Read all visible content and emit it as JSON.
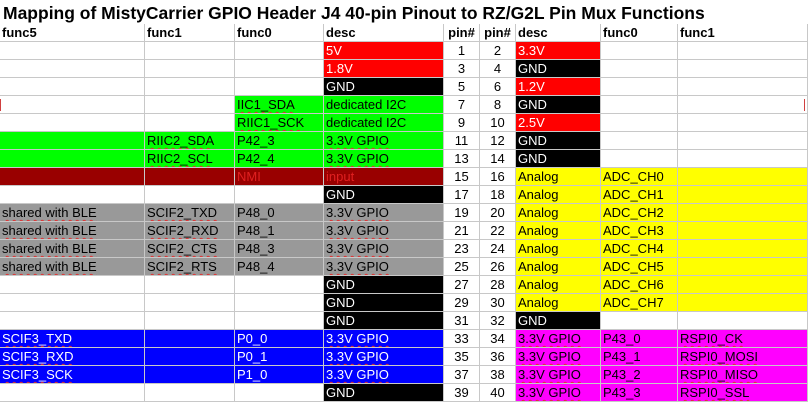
{
  "title": "Mapping of MistyCarrier GPIO Header J4 40-pin Pinout to RZ/G2L Pin Mux Functions",
  "columns": [
    "func5",
    "func1",
    "func0",
    "desc",
    "pin#",
    "pin#",
    "desc",
    "func0",
    "func1"
  ],
  "colors": {
    "red": "#ff0000",
    "black": "#000000",
    "green": "#00ff00",
    "yellow": "#ffff00",
    "maroon": "#990000",
    "gray": "#999999",
    "blue": "#0000ff",
    "magenta": "#ff00ff",
    "white": "#ffffff"
  },
  "rows": [
    {
      "left_bg": "",
      "left_fg": "",
      "c0": "",
      "c1": "",
      "c2": "",
      "c3": "5V",
      "p1": "1",
      "p2": "2",
      "right_bg": "red",
      "right_fg": "red",
      "c6": "3.3V",
      "c7": "",
      "c8": "",
      "lbg": "red",
      "lfg": "white"
    },
    {
      "left_bg": "",
      "c0": "",
      "c1": "",
      "c2": "",
      "c3": "1.8V",
      "p1": "3",
      "p2": "4",
      "right_bg": "black",
      "right_fg": "white",
      "c6": "GND",
      "c7": "",
      "c8": "",
      "lbg": "red",
      "lfg": "white"
    },
    {
      "c0": "",
      "c1": "",
      "c2": "",
      "c3": "GND",
      "p1": "5",
      "p2": "6",
      "right_bg": "red",
      "right_fg": "white",
      "c6": "1.2V",
      "c7": "",
      "c8": "",
      "lbg": "black",
      "lfg": "white"
    },
    {
      "c0": "",
      "c1": "",
      "c2": "IIC1_SDA",
      "c3": "dedicated I2C",
      "p1": "7",
      "p2": "8",
      "right_bg": "black",
      "right_fg": "white",
      "c6": "GND",
      "c7": "",
      "c8": "",
      "lbg": "green",
      "lfg": "black",
      "green_from": 2
    },
    {
      "c0": "",
      "c1": "",
      "c2": "RIIC1_SCK",
      "c3": "dedicated I2C",
      "p1": "9",
      "p2": "10",
      "right_bg": "red",
      "right_fg": "white",
      "c6": "2.5V",
      "c7": "",
      "c8": "",
      "lbg": "green",
      "lfg": "black",
      "green_from": 2
    },
    {
      "c0": "",
      "c1": "RIIC2_SDA",
      "c2": "P42_3",
      "c3": "3.3V GPIO",
      "p1": "11",
      "p2": "12",
      "right_bg": "black",
      "right_fg": "white",
      "c6": "GND",
      "c7": "",
      "c8": "",
      "lbg": "green",
      "lfg": "black",
      "green_from": 0
    },
    {
      "c0": "",
      "c1": "RIIC2_SCL",
      "c2": "P42_4",
      "c3": "3.3V GPIO",
      "p1": "13",
      "p2": "14",
      "right_bg": "black",
      "right_fg": "white",
      "c6": "GND",
      "c7": "",
      "c8": "",
      "lbg": "green",
      "lfg": "black",
      "green_from": 0
    },
    {
      "c0": "",
      "c1": "",
      "c2": "NMI",
      "c3": "input",
      "p1": "15",
      "p2": "16",
      "right_bg": "yellow",
      "right_fg": "black",
      "c6": "Analog",
      "c7": "ADC_CH0",
      "c8": "",
      "lbg": "maroon",
      "lfg": "maroon"
    },
    {
      "c0": "",
      "c1": "",
      "c2": "",
      "c3": "GND",
      "p1": "17",
      "p2": "18",
      "right_bg": "yellow",
      "right_fg": "black",
      "c6": "Analog",
      "c7": "ADC_CH1",
      "c8": "",
      "lbg": "black",
      "lfg": "white"
    },
    {
      "c0": "shared with BLE",
      "c1": "SCIF2_TXD",
      "c2": "P48_0",
      "c3": "3.3V GPIO",
      "p1": "19",
      "p2": "20",
      "right_bg": "yellow",
      "right_fg": "black",
      "c6": "Analog",
      "c7": "ADC_CH2",
      "c8": "",
      "lbg": "gray",
      "lfg": "black"
    },
    {
      "c0": "shared with BLE",
      "c1": "SCIF2_RXD",
      "c2": "P48_1",
      "c3": "3.3V GPIO",
      "p1": "21",
      "p2": "22",
      "right_bg": "yellow",
      "right_fg": "black",
      "c6": "Analog",
      "c7": "ADC_CH3",
      "c8": "",
      "lbg": "gray",
      "lfg": "black"
    },
    {
      "c0": "shared with BLE",
      "c1": "SCIF2_CTS",
      "c2": "P48_3",
      "c3": "3.3V GPIO",
      "p1": "23",
      "p2": "24",
      "right_bg": "yellow",
      "right_fg": "black",
      "c6": "Analog",
      "c7": "ADC_CH4",
      "c8": "",
      "lbg": "gray",
      "lfg": "black"
    },
    {
      "c0": "shared with BLE",
      "c1": "SCIF2_RTS",
      "c2": "P48_4",
      "c3": "3.3V GPIO",
      "p1": "25",
      "p2": "26",
      "right_bg": "yellow",
      "right_fg": "black",
      "c6": "Analog",
      "c7": "ADC_CH5",
      "c8": "",
      "lbg": "gray",
      "lfg": "black"
    },
    {
      "c0": "",
      "c1": "",
      "c2": "",
      "c3": "GND",
      "p1": "27",
      "p2": "28",
      "right_bg": "yellow",
      "right_fg": "black",
      "c6": "Analog",
      "c7": "ADC_CH6",
      "c8": "",
      "lbg": "black",
      "lfg": "white"
    },
    {
      "c0": "",
      "c1": "",
      "c2": "",
      "c3": "GND",
      "p1": "29",
      "p2": "30",
      "right_bg": "yellow",
      "right_fg": "black",
      "c6": "Analog",
      "c7": "ADC_CH7",
      "c8": "",
      "lbg": "black",
      "lfg": "white"
    },
    {
      "c0": "",
      "c1": "",
      "c2": "",
      "c3": "GND",
      "p1": "31",
      "p2": "32",
      "right_bg": "black",
      "right_fg": "white",
      "c6": "GND",
      "c7": "",
      "c8": "",
      "lbg": "black",
      "lfg": "white",
      "right_black_only_desc": true
    },
    {
      "c0": "SCIF3_TXD",
      "c1": "",
      "c2": "P0_0",
      "c3": "3.3V GPIO",
      "p1": "33",
      "p2": "34",
      "right_bg": "magenta",
      "right_fg": "black",
      "c6": "3.3V GPIO",
      "c7": "P43_0",
      "c8": "RSPI0_CK",
      "lbg": "blue",
      "lfg": "white"
    },
    {
      "c0": "SCIF3_RXD",
      "c1": "",
      "c2": "P0_1",
      "c3": "3.3V GPIO",
      "p1": "35",
      "p2": "36",
      "right_bg": "magenta",
      "right_fg": "black",
      "c6": "3.3V GPIO",
      "c7": "P43_1",
      "c8": "RSPI0_MOSI",
      "lbg": "blue",
      "lfg": "white"
    },
    {
      "c0": "SCIF3_SCK",
      "c1": "",
      "c2": "P1_0",
      "c3": "3.3V GPIO",
      "p1": "37",
      "p2": "38",
      "right_bg": "magenta",
      "right_fg": "black",
      "c6": "3.3V GPIO",
      "c7": "P43_2",
      "c8": "RSPI0_MISO",
      "lbg": "blue",
      "lfg": "white"
    },
    {
      "c0": "",
      "c1": "",
      "c2": "",
      "c3": "GND",
      "p1": "39",
      "p2": "40",
      "right_bg": "magenta",
      "right_fg": "black",
      "c6": "3.3V GPIO",
      "c7": "P43_3",
      "c8": "RSPI0_SSL",
      "lbg": "black",
      "lfg": "white",
      "left_black_only_desc": true
    }
  ]
}
